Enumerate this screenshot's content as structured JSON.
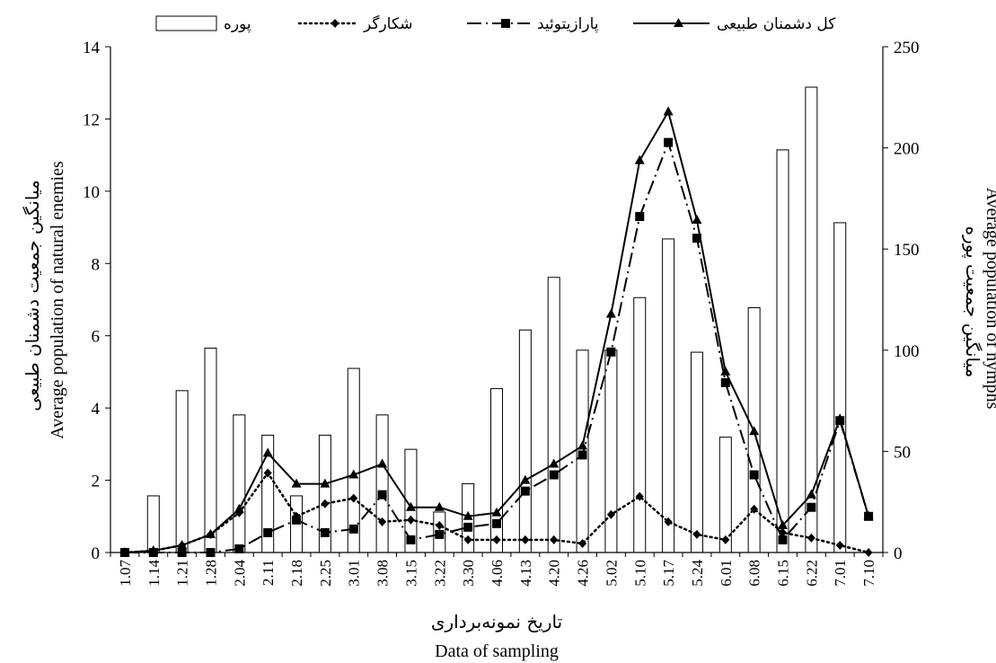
{
  "chart_data": {
    "type": "bar+line",
    "categories": [
      "1.07",
      "1.14",
      "1.21",
      "1.28",
      "2.04",
      "2.11",
      "2.18",
      "2.25",
      "3.01",
      "3.08",
      "3.15",
      "3.22",
      "3.30",
      "4.06",
      "4.13",
      "4.20",
      "4.26",
      "5.02",
      "5.10",
      "5.17",
      "5.24",
      "6.01",
      "6.08",
      "6.15",
      "6.22",
      "7.01",
      "7.10"
    ],
    "bars": {
      "name": "پوره",
      "axis": "right",
      "values": [
        0,
        28,
        80,
        101,
        68,
        58,
        28,
        58,
        91,
        68,
        51,
        20,
        34,
        81,
        110,
        136,
        100,
        100,
        126,
        155,
        99,
        57,
        121,
        199,
        230,
        163,
        0
      ]
    },
    "series": [
      {
        "name": "کل دشمنان طبیعی",
        "axis": "left",
        "style": "solid",
        "marker": "triangle",
        "values": [
          0,
          0.05,
          0.2,
          0.5,
          1.2,
          2.75,
          1.9,
          1.9,
          2.15,
          2.45,
          1.25,
          1.25,
          1.0,
          1.1,
          2.0,
          2.45,
          2.95,
          6.6,
          10.85,
          12.2,
          9.2,
          5.0,
          3.35,
          0.75,
          1.6,
          3.7,
          1.0
        ]
      },
      {
        "name": "پارازیتوئید",
        "axis": "left",
        "style": "dashdot",
        "marker": "square",
        "values": [
          0,
          0,
          0,
          0,
          0.1,
          0.55,
          0.9,
          0.55,
          0.65,
          1.6,
          0.35,
          0.5,
          0.7,
          0.8,
          1.7,
          2.15,
          2.7,
          5.55,
          9.3,
          11.35,
          8.7,
          4.7,
          2.15,
          0.35,
          1.25,
          3.65,
          1.0
        ]
      },
      {
        "name": "شکارگر",
        "axis": "left",
        "style": "dotted",
        "marker": "diamond",
        "values": [
          0,
          0.05,
          0.2,
          0.5,
          1.1,
          2.2,
          1.0,
          1.35,
          1.5,
          0.85,
          0.9,
          0.75,
          0.35,
          0.35,
          0.35,
          0.35,
          0.25,
          1.05,
          1.55,
          0.85,
          0.5,
          0.35,
          1.2,
          0.55,
          0.4,
          0.2,
          0
        ]
      }
    ],
    "ylim_left": [
      0,
      14
    ],
    "yticks_left": [
      "0",
      "2",
      "4",
      "6",
      "8",
      "10",
      "12",
      "14"
    ],
    "ylim_right": [
      0,
      250
    ],
    "yticks_right": [
      "0",
      "50",
      "100",
      "150",
      "200",
      "250"
    ],
    "ylabel_left_fa": "میانگین جمعیت دشمنان طبیعی",
    "ylabel_left_en": "Average population of natural  enemies",
    "ylabel_right_fa": "میانگین جمعیت پوره",
    "ylabel_right_en": "Average population of nymphs",
    "xlabel_fa": "تاریخ نمونه‌برداری",
    "xlabel_en": "Data of sampling",
    "legend_position": "top",
    "grid": false
  }
}
